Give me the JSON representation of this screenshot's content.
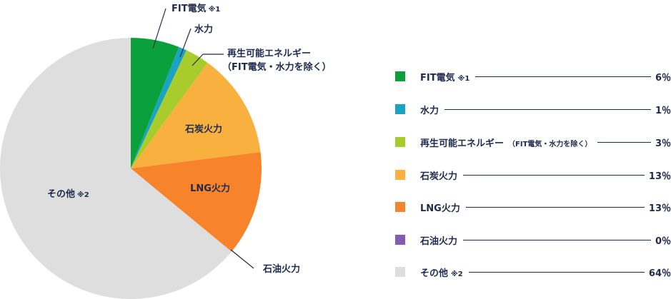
{
  "chart_data": {
    "type": "pie",
    "slices": [
      {
        "key": "fit",
        "value": 6,
        "color": "#0aa13c"
      },
      {
        "key": "hydro",
        "value": 1,
        "color": "#1aa3c4"
      },
      {
        "key": "renew",
        "value": 3,
        "color": "#a8cc2c"
      },
      {
        "key": "coal",
        "value": 13,
        "color": "#f8b13f"
      },
      {
        "key": "lng",
        "value": 13,
        "color": "#f7832a"
      },
      {
        "key": "oil",
        "value": 0,
        "color": "#8659b5"
      },
      {
        "key": "other",
        "value": 64,
        "color": "#dedede"
      }
    ]
  },
  "labels": {
    "fit": "FIT電気",
    "fit_note": "※1",
    "hydro": "水力",
    "renew_line1": "再生可能エネルギー",
    "renew_line2": "（FIT電気・水力を除く）",
    "coal": "石炭火力",
    "lng": "LNG火力",
    "oil": "石油火力",
    "other": "その他",
    "other_note": "※2"
  },
  "legend": [
    {
      "name": "FIT電気",
      "note": "※1",
      "value": "6％",
      "color": "#0aa13c"
    },
    {
      "name": "水力",
      "note": "",
      "value": "1％",
      "color": "#1aa3c4"
    },
    {
      "name": "再生可能エネルギー",
      "note": "（FIT電気・水力を除く）",
      "value": "3％",
      "color": "#a8cc2c"
    },
    {
      "name": "石炭火力",
      "note": "",
      "value": "13％",
      "color": "#f8b13f"
    },
    {
      "name": "LNG火力",
      "note": "",
      "value": "13％",
      "color": "#f7832a"
    },
    {
      "name": "石油火力",
      "note": "",
      "value": "0％",
      "color": "#8659b5"
    },
    {
      "name": "その他",
      "note": "※2",
      "value": "64％",
      "color": "#dedede"
    }
  ]
}
